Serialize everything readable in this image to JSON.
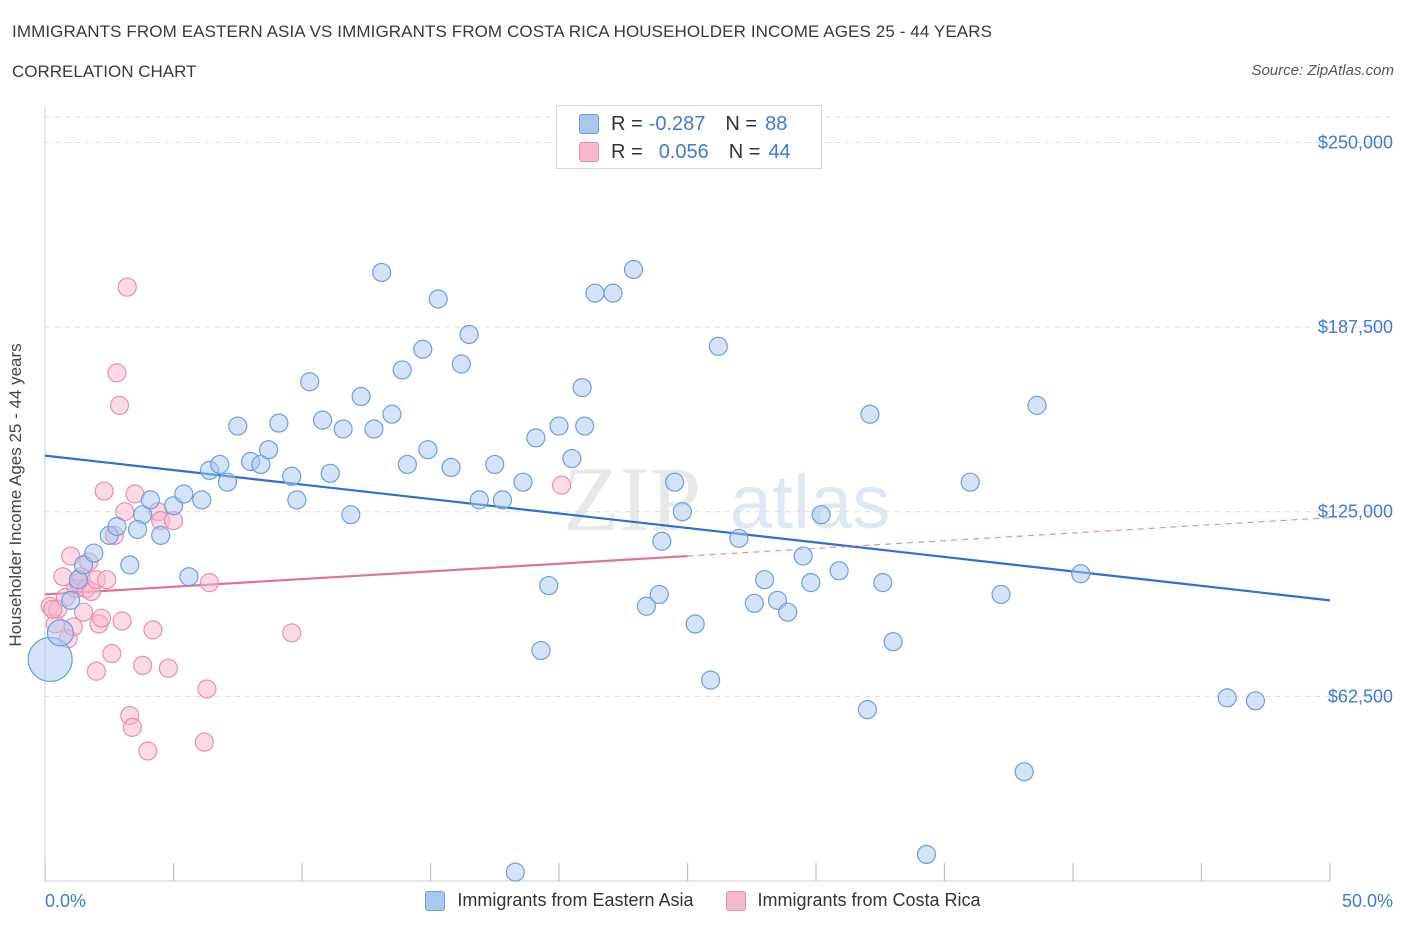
{
  "header": {
    "title": "IMMIGRANTS FROM EASTERN ASIA VS IMMIGRANTS FROM COSTA RICA HOUSEHOLDER INCOME AGES 25 - 44 YEARS",
    "subtitle": "CORRELATION CHART",
    "source": "Source: ZipAtlas.com"
  },
  "stats": {
    "series1": {
      "r_label": "R =",
      "r_value": "-0.287",
      "n_label": "N =",
      "n_value": "88"
    },
    "series2": {
      "r_label": "R =",
      "r_value": "0.056",
      "n_label": "N =",
      "n_value": "44"
    }
  },
  "colors": {
    "blue_fill": "#a9c8f0",
    "blue_stroke": "#6d9ee0",
    "blue_line": "#2e6fcf",
    "pink_fill": "#f6b8cb",
    "pink_stroke": "#ea8fac",
    "pink_line": "#e0709a",
    "axis_text": "#3d7bd4",
    "grid": "#dcdcdc"
  },
  "watermark": {
    "zip": "ZIP",
    "atlas": "atlas"
  },
  "chart_data": {
    "type": "scatter",
    "title": "IMMIGRANTS FROM EASTERN ASIA VS IMMIGRANTS FROM COSTA RICA HOUSEHOLDER INCOME AGES 25 - 44 YEARS",
    "xlabel": "",
    "ylabel": "Householder Income Ages 25 - 44 years",
    "xlim": [
      0,
      50
    ],
    "ylim": [
      0,
      262000
    ],
    "x_tick_labels": {
      "min": "0.0%",
      "max": "50.0%"
    },
    "y_ticks": [
      {
        "value": 62500,
        "label": "$62,500"
      },
      {
        "value": 125000,
        "label": "$125,000"
      },
      {
        "value": 187500,
        "label": "$187,500"
      },
      {
        "value": 250000,
        "label": "$250,000"
      }
    ],
    "series": [
      {
        "name": "Immigrants from Eastern Asia",
        "color": "blue",
        "trend": {
          "x0": 0,
          "y0": 144000,
          "x1": 50,
          "y1": 95000
        },
        "points": [
          [
            0.2,
            75000,
            22
          ],
          [
            0.6,
            84000,
            13
          ],
          [
            1.0,
            95000,
            9
          ],
          [
            1.3,
            102000,
            9
          ],
          [
            1.5,
            107000,
            9
          ],
          [
            1.9,
            111000,
            9
          ],
          [
            2.5,
            117000,
            9
          ],
          [
            2.8,
            120000,
            9
          ],
          [
            3.3,
            107000,
            9
          ],
          [
            3.8,
            124000,
            9
          ],
          [
            4.1,
            129000,
            9
          ],
          [
            4.5,
            117000,
            9
          ],
          [
            5.0,
            127000,
            9
          ],
          [
            5.4,
            131000,
            9
          ],
          [
            5.6,
            103000,
            9
          ],
          [
            6.1,
            129000,
            9
          ],
          [
            6.4,
            139000,
            9
          ],
          [
            6.8,
            141000,
            9
          ],
          [
            7.1,
            135000,
            9
          ],
          [
            7.5,
            154000,
            9
          ],
          [
            8.0,
            142000,
            9
          ],
          [
            8.4,
            141000,
            9
          ],
          [
            8.7,
            146000,
            9
          ],
          [
            9.1,
            155000,
            9
          ],
          [
            9.6,
            137000,
            9
          ],
          [
            9.8,
            129000,
            9
          ],
          [
            10.3,
            169000,
            9
          ],
          [
            10.8,
            156000,
            9
          ],
          [
            11.1,
            138000,
            9
          ],
          [
            11.6,
            153000,
            9
          ],
          [
            11.9,
            124000,
            9
          ],
          [
            12.3,
            164000,
            9
          ],
          [
            12.8,
            153000,
            9
          ],
          [
            13.1,
            206000,
            9
          ],
          [
            13.5,
            158000,
            9
          ],
          [
            13.9,
            173000,
            9
          ],
          [
            14.1,
            141000,
            9
          ],
          [
            14.7,
            180000,
            9
          ],
          [
            14.9,
            146000,
            9
          ],
          [
            15.3,
            197000,
            9
          ],
          [
            15.8,
            140000,
            9
          ],
          [
            16.2,
            175000,
            9
          ],
          [
            16.5,
            185000,
            9
          ],
          [
            16.9,
            129000,
            9
          ],
          [
            17.5,
            141000,
            9
          ],
          [
            17.8,
            129000,
            9
          ],
          [
            18.6,
            135000,
            9
          ],
          [
            19.1,
            150000,
            9
          ],
          [
            19.3,
            78000,
            9
          ],
          [
            19.6,
            100000,
            9
          ],
          [
            20.0,
            154000,
            9
          ],
          [
            20.5,
            143000,
            9
          ],
          [
            20.9,
            167000,
            9
          ],
          [
            21.0,
            154000,
            9
          ],
          [
            21.4,
            199000,
            9
          ],
          [
            22.1,
            199000,
            9
          ],
          [
            22.9,
            207000,
            9
          ],
          [
            23.4,
            93000,
            9
          ],
          [
            23.9,
            97000,
            9
          ],
          [
            24.0,
            115000,
            9
          ],
          [
            24.5,
            135000,
            9
          ],
          [
            24.8,
            125000,
            9
          ],
          [
            25.3,
            87000,
            9
          ],
          [
            25.9,
            68000,
            9
          ],
          [
            26.2,
            181000,
            9
          ],
          [
            27.0,
            116000,
            9
          ],
          [
            27.6,
            94000,
            9
          ],
          [
            28.0,
            102000,
            9
          ],
          [
            28.5,
            95000,
            9
          ],
          [
            28.9,
            91000,
            9
          ],
          [
            29.5,
            110000,
            9
          ],
          [
            29.8,
            101000,
            9
          ],
          [
            30.2,
            124000,
            9
          ],
          [
            30.9,
            105000,
            9
          ],
          [
            32.0,
            58000,
            9
          ],
          [
            32.1,
            158000,
            9
          ],
          [
            32.6,
            101000,
            9
          ],
          [
            33.0,
            81000,
            9
          ],
          [
            34.3,
            9000,
            9
          ],
          [
            36.0,
            135000,
            9
          ],
          [
            37.2,
            97000,
            9
          ],
          [
            38.1,
            37000,
            9
          ],
          [
            38.6,
            161000,
            9
          ],
          [
            40.3,
            104000,
            9
          ],
          [
            46.0,
            62000,
            9
          ],
          [
            47.1,
            61000,
            9
          ],
          [
            18.3,
            3000,
            9
          ],
          [
            3.6,
            119000,
            9
          ]
        ]
      },
      {
        "name": "Immigrants from Costa Rica",
        "color": "pink",
        "trend": {
          "x0": 0,
          "y0": 97000,
          "x1": 25,
          "y1": 110000
        },
        "trend_dashed": {
          "x0": 25,
          "y0": 110000,
          "x1": 50,
          "y1": 123000
        },
        "points": [
          [
            0.2,
            93000,
            9
          ],
          [
            0.4,
            87000,
            9
          ],
          [
            0.5,
            92000,
            9
          ],
          [
            0.7,
            103000,
            9
          ],
          [
            0.8,
            96000,
            9
          ],
          [
            0.9,
            82000,
            9
          ],
          [
            1.0,
            110000,
            9
          ],
          [
            1.1,
            86000,
            9
          ],
          [
            1.2,
            99000,
            9
          ],
          [
            1.3,
            101000,
            9
          ],
          [
            1.4,
            103000,
            9
          ],
          [
            1.5,
            91000,
            9
          ],
          [
            1.6,
            99000,
            9
          ],
          [
            1.7,
            108000,
            9
          ],
          [
            1.8,
            98000,
            9
          ],
          [
            2.0,
            102000,
            9
          ],
          [
            2.0,
            71000,
            9
          ],
          [
            2.1,
            87000,
            9
          ],
          [
            2.2,
            89000,
            9
          ],
          [
            2.3,
            132000,
            9
          ],
          [
            2.4,
            102000,
            9
          ],
          [
            2.6,
            77000,
            9
          ],
          [
            2.7,
            117000,
            9
          ],
          [
            2.8,
            172000,
            9
          ],
          [
            2.9,
            161000,
            9
          ],
          [
            3.0,
            88000,
            9
          ],
          [
            3.1,
            125000,
            9
          ],
          [
            3.2,
            201000,
            9
          ],
          [
            3.3,
            56000,
            9
          ],
          [
            3.4,
            52000,
            9
          ],
          [
            3.5,
            131000,
            9
          ],
          [
            3.8,
            73000,
            9
          ],
          [
            4.0,
            44000,
            9
          ],
          [
            4.2,
            85000,
            9
          ],
          [
            4.4,
            125000,
            9
          ],
          [
            4.5,
            122000,
            9
          ],
          [
            4.8,
            72000,
            9
          ],
          [
            5.0,
            122000,
            9
          ],
          [
            6.2,
            47000,
            9
          ],
          [
            6.3,
            65000,
            9
          ],
          [
            6.4,
            101000,
            9
          ],
          [
            9.6,
            84000,
            9
          ],
          [
            20.1,
            134000,
            9
          ],
          [
            0.3,
            92000,
            9
          ]
        ]
      }
    ],
    "legend": [
      "Immigrants from Eastern Asia",
      "Immigrants from Costa Rica"
    ],
    "legend_position": "bottom-center"
  }
}
